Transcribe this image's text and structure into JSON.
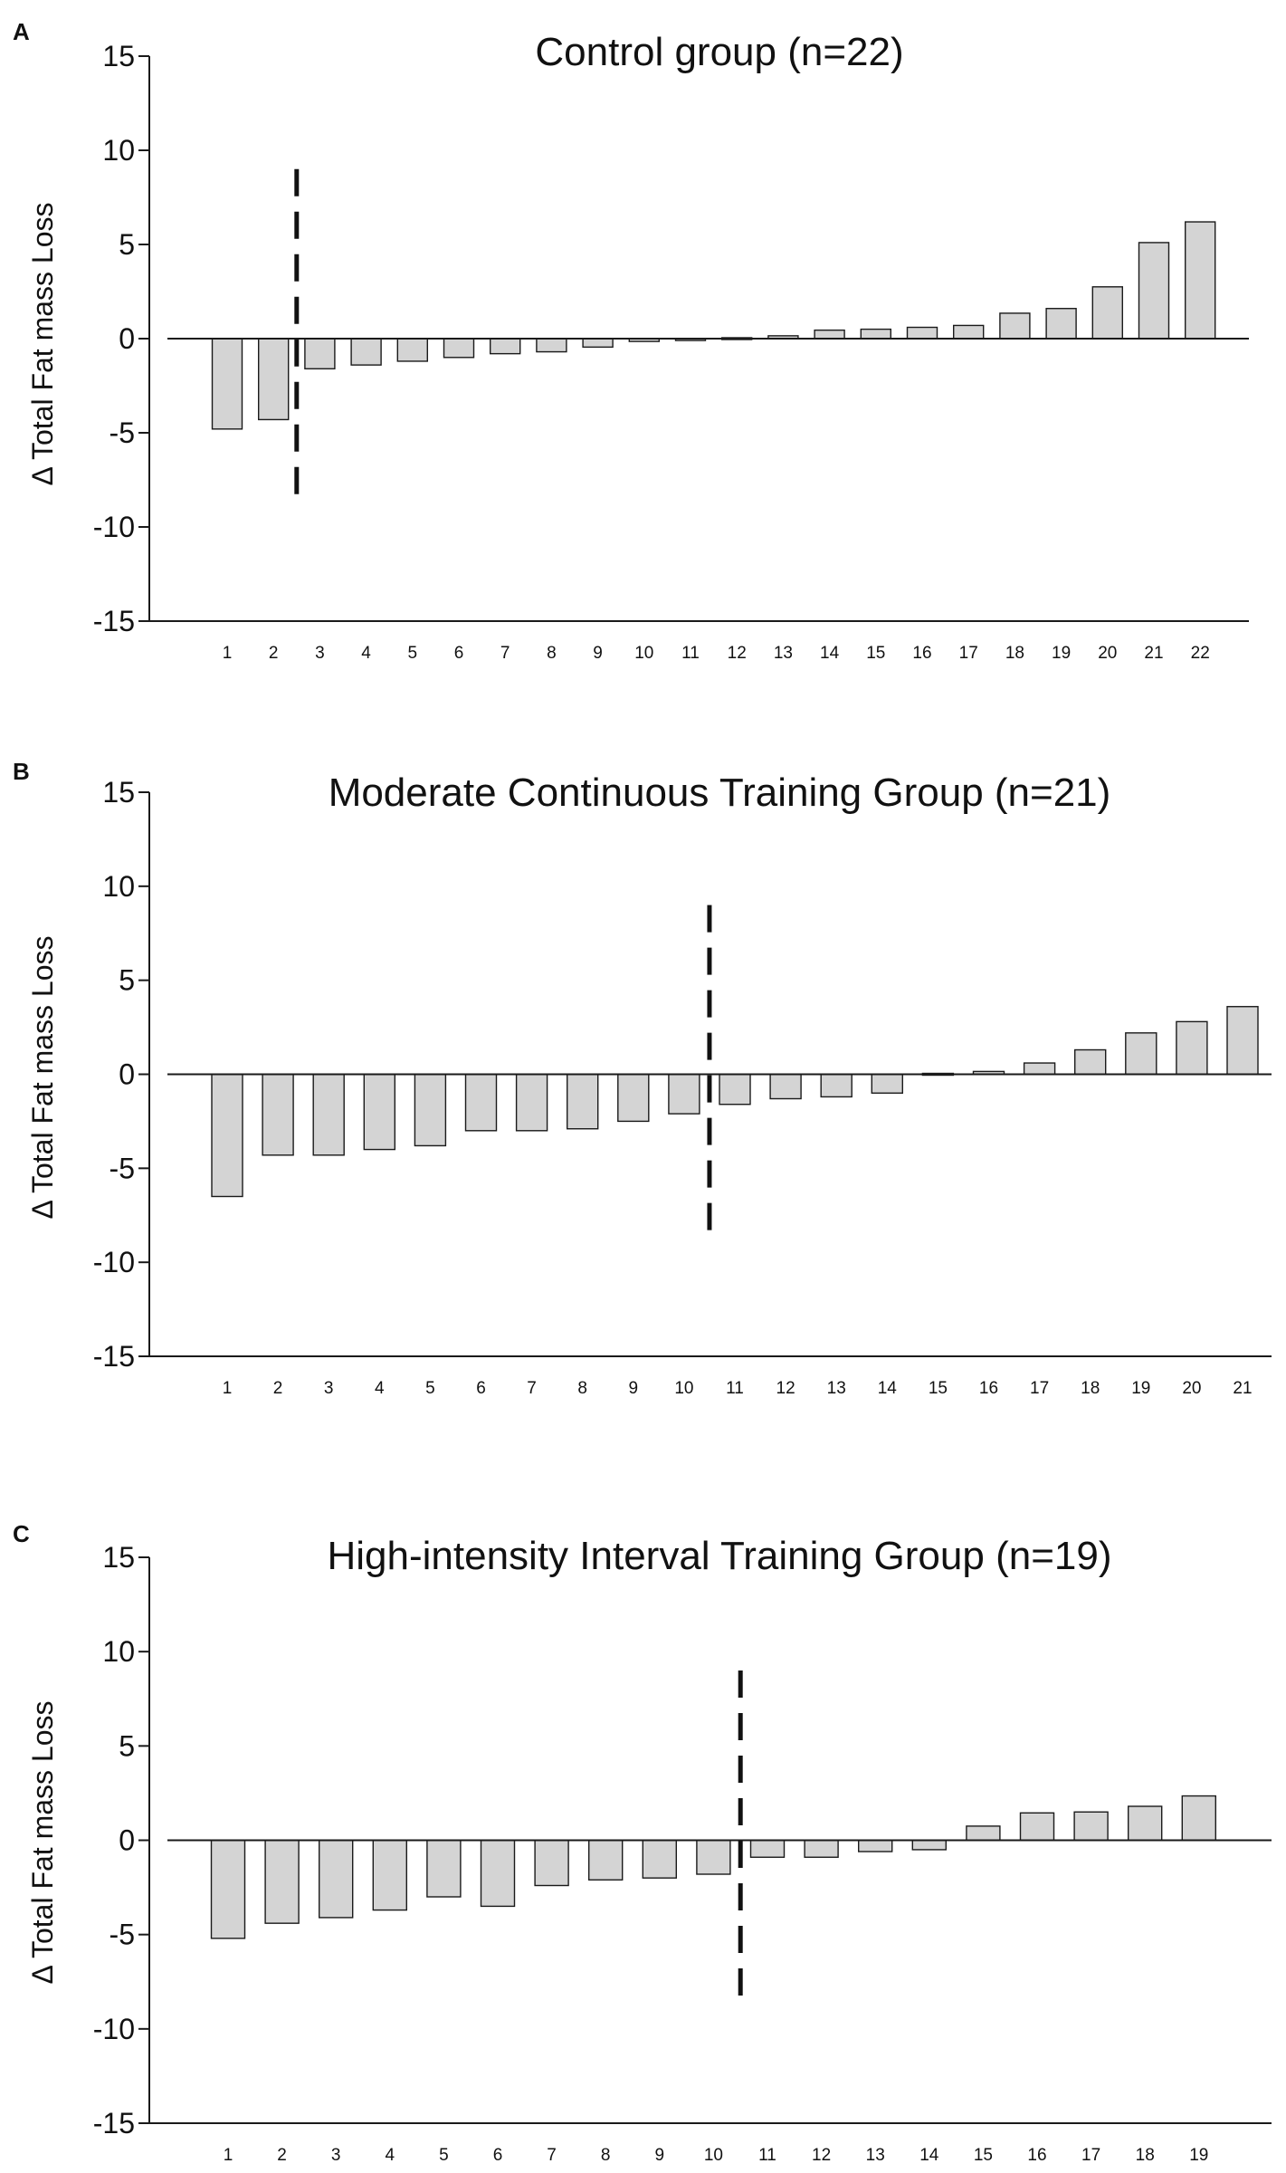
{
  "chart_data": [
    {
      "panel": "A",
      "type": "bar",
      "title": "Control group (n=22)",
      "ylabel": "Δ Total Fat mass Loss",
      "xlabel": "",
      "ylim": [
        -15,
        15
      ],
      "yticks": [
        15,
        10,
        5,
        0,
        -5,
        -10,
        -15
      ],
      "categories": [
        "1",
        "2",
        "3",
        "4",
        "5",
        "6",
        "7",
        "8",
        "9",
        "10",
        "11",
        "12",
        "13",
        "14",
        "15",
        "16",
        "17",
        "18",
        "19",
        "20",
        "21",
        "22"
      ],
      "values": [
        -4.8,
        -4.3,
        -1.6,
        -1.4,
        -1.2,
        -1.0,
        -0.8,
        -0.7,
        -0.45,
        -0.15,
        -0.1,
        0.0,
        0.15,
        0.45,
        0.5,
        0.6,
        0.7,
        1.35,
        1.6,
        2.75,
        5.1,
        6.2
      ],
      "color": "#d4d4d4",
      "cutoff": {
        "after_category": 2,
        "ymin": -9,
        "ymax": 9
      }
    },
    {
      "panel": "B",
      "type": "bar",
      "title": "Moderate Continuous Training Group (n=21)",
      "ylabel": "Δ Total Fat mass Loss",
      "xlabel": "",
      "ylim": [
        -15,
        15
      ],
      "yticks": [
        15,
        10,
        5,
        0,
        -5,
        -10,
        -15
      ],
      "categories": [
        "1",
        "2",
        "3",
        "4",
        "5",
        "6",
        "7",
        "8",
        "9",
        "10",
        "11",
        "12",
        "13",
        "14",
        "15",
        "16",
        "17",
        "18",
        "19",
        "20",
        "21"
      ],
      "values": [
        -6.5,
        -4.3,
        -4.3,
        -4.0,
        -3.8,
        -3.0,
        -3.0,
        -2.9,
        -2.5,
        -2.1,
        -1.6,
        -1.3,
        -1.2,
        -1.0,
        0.05,
        0.15,
        0.6,
        1.3,
        2.2,
        2.8,
        3.6
      ],
      "color": "#d4d4d4",
      "cutoff": {
        "after_category": 10,
        "ymin": -9,
        "ymax": 9
      }
    },
    {
      "panel": "C",
      "type": "bar",
      "title": "High-intensity Interval Training Group (n=19)",
      "ylabel": "Δ Total Fat mass Loss",
      "xlabel": "",
      "ylim": [
        -15,
        15
      ],
      "yticks": [
        15,
        10,
        5,
        0,
        -5,
        -10,
        -15
      ],
      "categories": [
        "1",
        "2",
        "3",
        "4",
        "5",
        "6",
        "7",
        "8",
        "9",
        "10",
        "11",
        "12",
        "13",
        "14",
        "15",
        "16",
        "17",
        "18",
        "19"
      ],
      "values": [
        -5.2,
        -4.4,
        -4.1,
        -3.7,
        -3.0,
        -3.5,
        -2.4,
        -2.1,
        -2.0,
        -1.8,
        -0.9,
        -0.9,
        -0.6,
        -0.5,
        0.75,
        1.45,
        1.5,
        1.8,
        2.35
      ],
      "color": "#d4d4d4",
      "cutoff": {
        "after_category": 10,
        "ymin": -9,
        "ymax": 9
      }
    }
  ]
}
